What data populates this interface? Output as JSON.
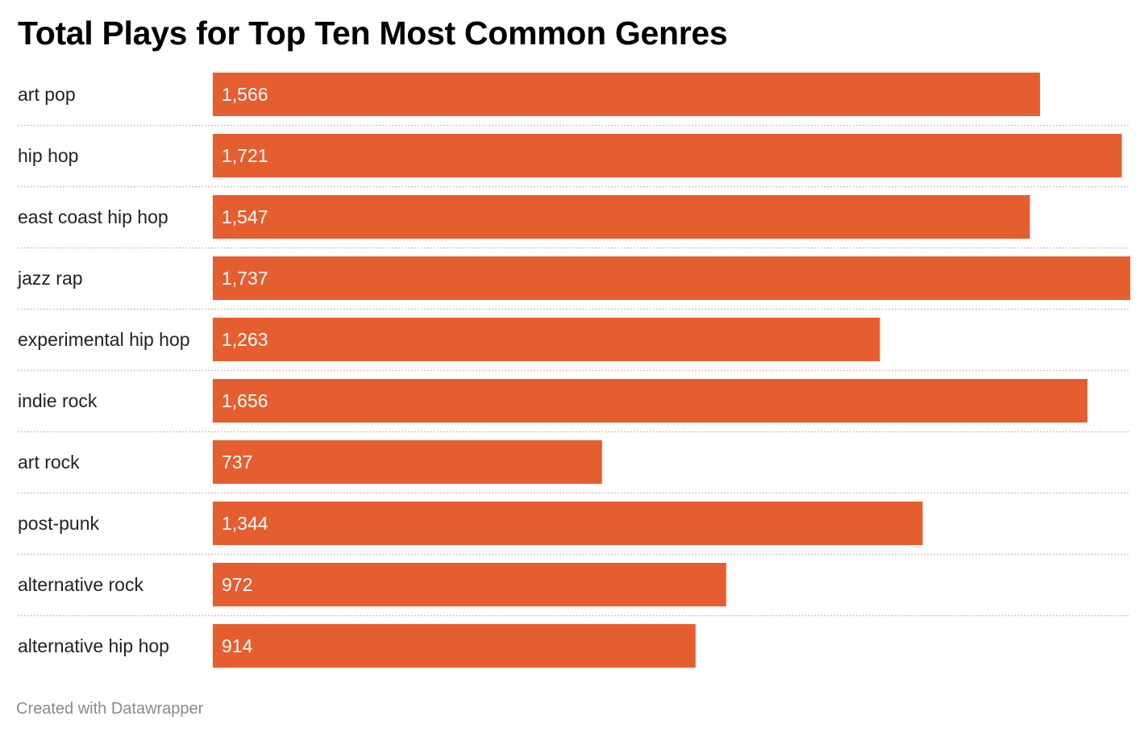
{
  "title": "Total Plays for Top Ten Most Common Genres",
  "footer": "Created with Datawrapper",
  "colors": {
    "bar": "#E55E2F",
    "separator": "#c8c8c8",
    "label": "#222222",
    "value_label": "#ffffff",
    "footer": "#8a8a8a"
  },
  "chart_data": {
    "type": "bar",
    "orientation": "horizontal",
    "title": "Total Plays for Top Ten Most Common Genres",
    "categories": [
      "art pop",
      "hip hop",
      "east coast hip hop",
      "jazz rap",
      "experimental hip hop",
      "indie rock",
      "art rock",
      "post-punk",
      "alternative rock",
      "alternative hip hop"
    ],
    "values": [
      1566,
      1721,
      1547,
      1737,
      1263,
      1656,
      737,
      1344,
      972,
      914
    ],
    "value_labels": [
      "1,566",
      "1,721",
      "1,547",
      "1,737",
      "1,263",
      "1,656",
      "737",
      "1,344",
      "972",
      "914"
    ],
    "xlim": [
      0,
      1737
    ],
    "grid": false,
    "legend": "none",
    "row_separators": "dotted"
  }
}
